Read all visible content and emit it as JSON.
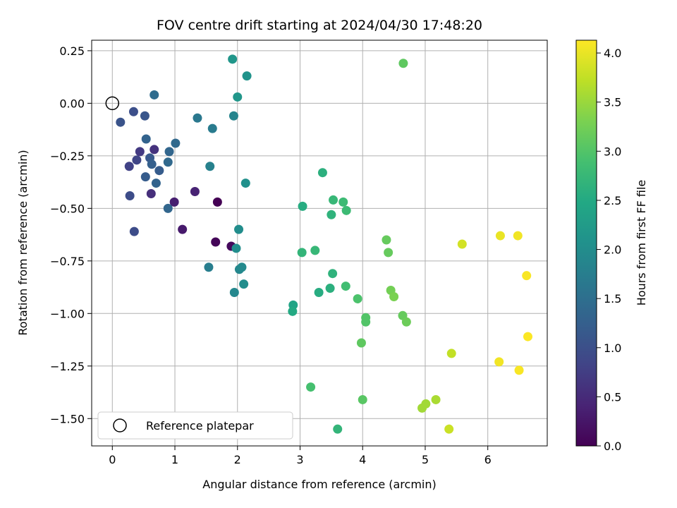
{
  "chart_data": {
    "type": "scatter",
    "title": "FOV centre drift starting at 2024/04/30 17:48:20",
    "xlabel": "Angular distance from reference (arcmin)",
    "ylabel": "Rotation from reference (arcmin)",
    "xlim": [
      -0.33,
      6.95
    ],
    "ylim": [
      -1.63,
      0.3
    ],
    "xticks": [
      0,
      1,
      2,
      3,
      4,
      5,
      6
    ],
    "xtick_labels": [
      "0",
      "1",
      "2",
      "3",
      "4",
      "5",
      "6"
    ],
    "yticks": [
      0.25,
      0.0,
      -0.25,
      -0.5,
      -0.75,
      -1.0,
      -1.25,
      -1.5
    ],
    "ytick_labels": [
      "0.25",
      "0.00",
      "−0.25",
      "−0.50",
      "−0.75",
      "−1.00",
      "−1.25",
      "−1.50"
    ],
    "grid": true,
    "legend": {
      "position": "lower-left",
      "entries": [
        "Reference platepar"
      ]
    },
    "reference_point": {
      "x": 0,
      "y": 0
    },
    "colormap": "viridis",
    "colorbar": {
      "label": "Hours from first FF file",
      "range": [
        0.0,
        4.13
      ],
      "ticks": [
        0.0,
        0.5,
        1.0,
        1.5,
        2.0,
        2.5,
        3.0,
        3.5,
        4.0
      ],
      "tick_labels": [
        "0.0",
        "0.5",
        "1.0",
        "1.5",
        "2.0",
        "2.5",
        "3.0",
        "3.5",
        "4.0"
      ]
    },
    "points": [
      {
        "x": 1.68,
        "y": -0.47,
        "c": 0.0
      },
      {
        "x": 1.65,
        "y": -0.66,
        "c": 0.05
      },
      {
        "x": 1.9,
        "y": -0.68,
        "c": 0.1
      },
      {
        "x": 1.12,
        "y": -0.6,
        "c": 0.3
      },
      {
        "x": 0.99,
        "y": -0.47,
        "c": 0.35
      },
      {
        "x": 1.32,
        "y": -0.42,
        "c": 0.4
      },
      {
        "x": 0.62,
        "y": -0.43,
        "c": 0.55
      },
      {
        "x": 0.67,
        "y": -0.22,
        "c": 0.6
      },
      {
        "x": 0.44,
        "y": -0.23,
        "c": 0.7
      },
      {
        "x": 0.27,
        "y": -0.3,
        "c": 0.8
      },
      {
        "x": 0.39,
        "y": -0.27,
        "c": 0.85
      },
      {
        "x": 0.28,
        "y": -0.44,
        "c": 0.95
      },
      {
        "x": 0.35,
        "y": -0.61,
        "c": 0.95
      },
      {
        "x": 0.34,
        "y": -0.04,
        "c": 1.0
      },
      {
        "x": 0.13,
        "y": -0.09,
        "c": 1.05
      },
      {
        "x": 0.52,
        "y": -0.06,
        "c": 1.1
      },
      {
        "x": 0.6,
        "y": -0.26,
        "c": 1.15
      },
      {
        "x": 0.75,
        "y": -0.32,
        "c": 1.2
      },
      {
        "x": 0.53,
        "y": -0.35,
        "c": 1.2
      },
      {
        "x": 0.63,
        "y": -0.29,
        "c": 1.25
      },
      {
        "x": 0.54,
        "y": -0.17,
        "c": 1.3
      },
      {
        "x": 0.7,
        "y": -0.38,
        "c": 1.3
      },
      {
        "x": 0.89,
        "y": -0.5,
        "c": 1.35
      },
      {
        "x": 0.91,
        "y": -0.23,
        "c": 1.35
      },
      {
        "x": 0.89,
        "y": -0.28,
        "c": 1.4
      },
      {
        "x": 1.01,
        "y": -0.19,
        "c": 1.4
      },
      {
        "x": 0.67,
        "y": 0.04,
        "c": 1.45
      },
      {
        "x": 1.36,
        "y": -0.07,
        "c": 1.65
      },
      {
        "x": 1.6,
        "y": -0.12,
        "c": 1.7
      },
      {
        "x": 1.54,
        "y": -0.78,
        "c": 1.75
      },
      {
        "x": 1.56,
        "y": -0.3,
        "c": 1.8
      },
      {
        "x": 1.94,
        "y": -0.06,
        "c": 1.85
      },
      {
        "x": 1.95,
        "y": -0.9,
        "c": 1.9
      },
      {
        "x": 2.03,
        "y": -0.79,
        "c": 1.9
      },
      {
        "x": 2.07,
        "y": -0.78,
        "c": 1.95
      },
      {
        "x": 1.98,
        "y": -0.69,
        "c": 2.0
      },
      {
        "x": 2.02,
        "y": -0.6,
        "c": 2.0
      },
      {
        "x": 2.1,
        "y": -0.86,
        "c": 2.0
      },
      {
        "x": 2.13,
        "y": -0.38,
        "c": 2.05
      },
      {
        "x": 2.15,
        "y": 0.13,
        "c": 2.1
      },
      {
        "x": 1.92,
        "y": 0.21,
        "c": 2.15
      },
      {
        "x": 2.0,
        "y": 0.03,
        "c": 2.15
      },
      {
        "x": 2.89,
        "y": -0.96,
        "c": 2.4
      },
      {
        "x": 2.88,
        "y": -0.99,
        "c": 2.5
      },
      {
        "x": 3.04,
        "y": -0.49,
        "c": 2.55
      },
      {
        "x": 3.3,
        "y": -0.9,
        "c": 2.55
      },
      {
        "x": 3.36,
        "y": -0.33,
        "c": 2.6
      },
      {
        "x": 3.48,
        "y": -0.88,
        "c": 2.6
      },
      {
        "x": 3.52,
        "y": -0.81,
        "c": 2.65
      },
      {
        "x": 3.5,
        "y": -0.53,
        "c": 2.65
      },
      {
        "x": 3.6,
        "y": -1.55,
        "c": 2.7
      },
      {
        "x": 3.03,
        "y": -0.71,
        "c": 2.7
      },
      {
        "x": 3.24,
        "y": -0.7,
        "c": 2.75
      },
      {
        "x": 3.53,
        "y": -0.46,
        "c": 2.75
      },
      {
        "x": 3.69,
        "y": -0.47,
        "c": 2.8
      },
      {
        "x": 3.74,
        "y": -0.51,
        "c": 2.8
      },
      {
        "x": 3.73,
        "y": -0.87,
        "c": 2.85
      },
      {
        "x": 3.17,
        "y": -1.35,
        "c": 2.9
      },
      {
        "x": 3.92,
        "y": -0.93,
        "c": 2.95
      },
      {
        "x": 4.05,
        "y": -1.02,
        "c": 3.0
      },
      {
        "x": 4.05,
        "y": -1.04,
        "c": 3.0
      },
      {
        "x": 4.0,
        "y": -1.41,
        "c": 3.05
      },
      {
        "x": 3.98,
        "y": -1.14,
        "c": 3.1
      },
      {
        "x": 4.38,
        "y": -0.65,
        "c": 3.15
      },
      {
        "x": 4.41,
        "y": -0.71,
        "c": 3.15
      },
      {
        "x": 4.65,
        "y": 0.19,
        "c": 3.1
      },
      {
        "x": 4.64,
        "y": -1.01,
        "c": 3.15
      },
      {
        "x": 4.7,
        "y": -1.04,
        "c": 3.2
      },
      {
        "x": 4.45,
        "y": -0.89,
        "c": 3.25
      },
      {
        "x": 4.5,
        "y": -0.92,
        "c": 3.3
      },
      {
        "x": 4.95,
        "y": -1.45,
        "c": 3.55
      },
      {
        "x": 5.01,
        "y": -1.43,
        "c": 3.55
      },
      {
        "x": 5.17,
        "y": -1.41,
        "c": 3.6
      },
      {
        "x": 5.42,
        "y": -1.19,
        "c": 3.75
      },
      {
        "x": 5.38,
        "y": -1.55,
        "c": 3.8
      },
      {
        "x": 5.59,
        "y": -0.67,
        "c": 3.85
      },
      {
        "x": 6.2,
        "y": -0.63,
        "c": 4.0
      },
      {
        "x": 6.48,
        "y": -0.63,
        "c": 4.05
      },
      {
        "x": 6.18,
        "y": -1.23,
        "c": 4.05
      },
      {
        "x": 6.5,
        "y": -1.27,
        "c": 4.1
      },
      {
        "x": 6.62,
        "y": -0.82,
        "c": 4.1
      },
      {
        "x": 6.64,
        "y": -1.11,
        "c": 4.12
      }
    ]
  }
}
